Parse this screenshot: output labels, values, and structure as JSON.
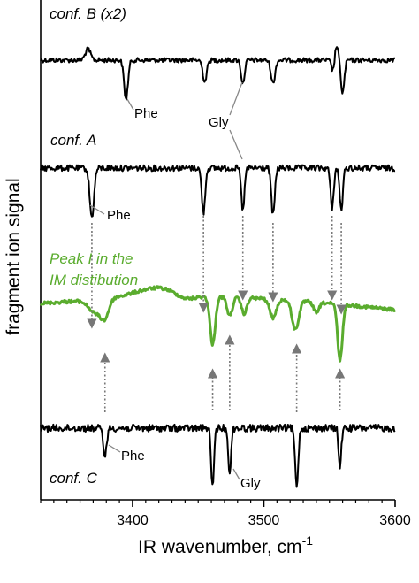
{
  "chart_data": {
    "type": "line",
    "xlabel": "IR wavenumber, cm",
    "xlabel_sup": "-1",
    "ylabel": "fragment ion signal",
    "xlim": [
      3330,
      3600
    ],
    "x_ticks": [
      3400,
      3500,
      3600
    ],
    "x_tick_labels": [
      "3400",
      "3500",
      "3600"
    ],
    "minor_tick_step": 10,
    "y_axis_ticks": false,
    "legend": "none",
    "series": [
      {
        "name": "conf. B (x2)",
        "color": "#000000",
        "baseline": 0.0,
        "noise": 0.06,
        "peaks": [
          {
            "x": 3366,
            "depth": -0.28,
            "width": 2.0
          },
          {
            "x": 3395,
            "depth": 1.0,
            "width": 1.5
          },
          {
            "x": 3455,
            "depth": 0.55,
            "width": 1.5
          },
          {
            "x": 3484,
            "depth": 0.6,
            "width": 1.3
          },
          {
            "x": 3507,
            "depth": 0.6,
            "width": 1.5
          },
          {
            "x": 3553,
            "depth": 0.4,
            "width": 1.3
          },
          {
            "x": 3555,
            "depth": -0.45,
            "width": 1.5
          },
          {
            "x": 3560,
            "depth": 0.85,
            "width": 1.3
          }
        ]
      },
      {
        "name": "conf. A",
        "color": "#000000",
        "baseline": 0.0,
        "noise": 0.06,
        "peaks": [
          {
            "x": 3369,
            "depth": 1.0,
            "width": 1.6
          },
          {
            "x": 3454,
            "depth": 0.9,
            "width": 1.3
          },
          {
            "x": 3484,
            "depth": 0.85,
            "width": 1.2
          },
          {
            "x": 3507,
            "depth": 0.95,
            "width": 1.3
          },
          {
            "x": 3552,
            "depth": 0.8,
            "width": 1.2
          },
          {
            "x": 3559,
            "depth": 0.85,
            "width": 1.2
          }
        ]
      },
      {
        "name": "Peak I in the IM distibution",
        "color": "#5aac2e",
        "baseline": 0.0,
        "noise": 0.03,
        "peaks": [
          {
            "x": 3372,
            "depth": 0.25,
            "width": 5
          },
          {
            "x": 3379,
            "depth": 0.3,
            "width": 3
          },
          {
            "x": 3461,
            "depth": 0.9,
            "width": 2.0
          },
          {
            "x": 3474,
            "depth": 0.35,
            "width": 2.0
          },
          {
            "x": 3485,
            "depth": 0.3,
            "width": 2.0
          },
          {
            "x": 3507,
            "depth": 0.35,
            "width": 2.5
          },
          {
            "x": 3524,
            "depth": 0.55,
            "width": 2.5
          },
          {
            "x": 3540,
            "depth": 0.2,
            "width": 2.0
          },
          {
            "x": 3558,
            "depth": 1.05,
            "width": 1.8
          }
        ]
      },
      {
        "name": "conf. C",
        "color": "#000000",
        "baseline": 0.0,
        "noise": 0.06,
        "peaks": [
          {
            "x": 3379,
            "depth": 0.45,
            "width": 1.3
          },
          {
            "x": 3461,
            "depth": 1.0,
            "width": 1.1
          },
          {
            "x": 3474,
            "depth": 0.8,
            "width": 1.0
          },
          {
            "x": 3525,
            "depth": 0.95,
            "width": 1.2
          },
          {
            "x": 3558,
            "depth": 0.65,
            "width": 1.0
          }
        ]
      }
    ]
  },
  "annotations": {
    "conf_b": "conf. B (x2)",
    "conf_a": "conf. A",
    "conf_c": "conf. C",
    "peak_label_line1": "Peak I in the",
    "peak_label_line2": "IM distibution",
    "phe": "Phe",
    "gly": "Gly",
    "peak_label_color": "#5aac2e"
  }
}
